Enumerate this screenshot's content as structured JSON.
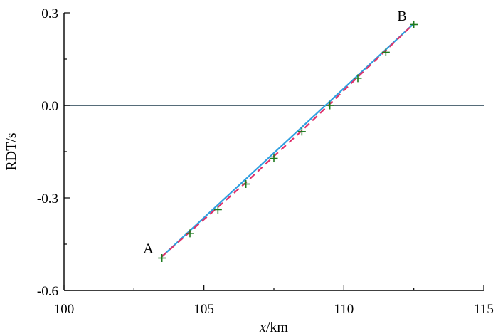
{
  "chart_data": {
    "type": "line",
    "xlabel": {
      "italic": "x",
      "rest": "/km"
    },
    "ylabel": "RDT/s",
    "xlim": [
      100,
      115
    ],
    "ylim": [
      -0.6,
      0.3
    ],
    "x_ticks": [
      100,
      105,
      110,
      115
    ],
    "x_tick_labels": [
      "100",
      "105",
      "110",
      "115"
    ],
    "y_ticks": [
      -0.6,
      -0.3,
      0.0,
      0.3
    ],
    "y_tick_labels": [
      "-0.6",
      "-0.3",
      "0.0",
      "0.3"
    ],
    "zero_line": 0.0,
    "grid": false,
    "series": [
      {
        "style": "solid",
        "color": "#2f9fe0",
        "x": [
          103.5,
          112.5
        ],
        "y": [
          -0.49,
          0.265
        ]
      },
      {
        "style": "dashed",
        "color": "#e0306a",
        "x": [
          103.5,
          104.5,
          105.5,
          106.5,
          107.5,
          108.5,
          109.5,
          110.5,
          111.5,
          112.5
        ],
        "y": [
          -0.49,
          -0.41,
          -0.33,
          -0.25,
          -0.165,
          -0.082,
          0.005,
          0.092,
          0.178,
          0.265
        ]
      },
      {
        "style": "markers",
        "marker": "+",
        "color": "#1e7a1e",
        "x": [
          103.5,
          104.5,
          105.5,
          106.5,
          107.5,
          108.5,
          109.5,
          110.5,
          111.5,
          112.5
        ],
        "y": [
          -0.495,
          -0.415,
          -0.338,
          -0.255,
          -0.172,
          -0.085,
          0.0,
          0.088,
          0.172,
          0.262
        ]
      }
    ],
    "annotations": [
      {
        "text": "A",
        "x": 103.5,
        "y": -0.49
      },
      {
        "text": "B",
        "x": 112.5,
        "y": 0.265
      }
    ]
  }
}
